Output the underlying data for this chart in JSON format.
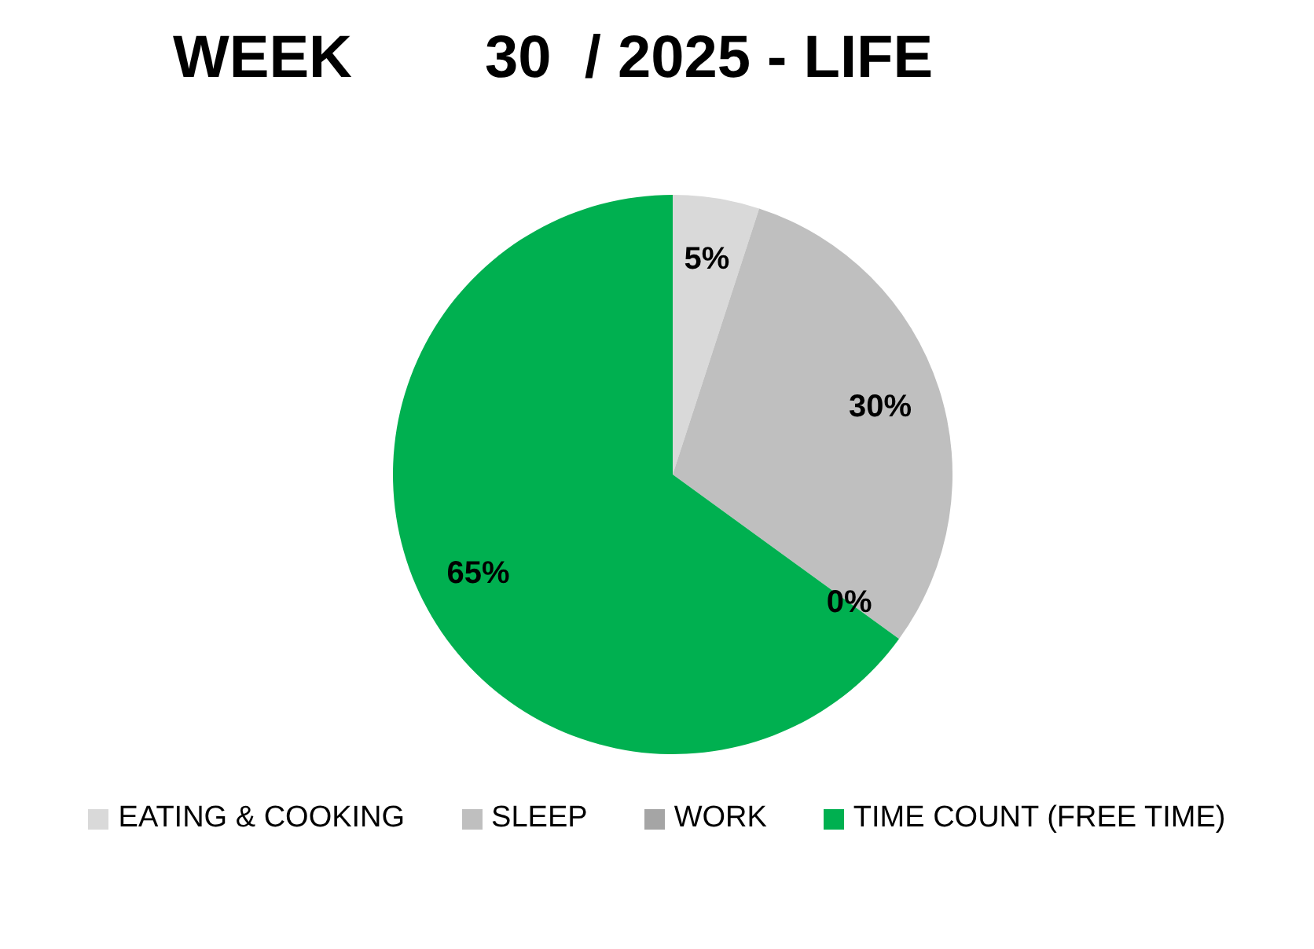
{
  "chart_data": {
    "type": "pie",
    "title": "WEEK        30  / 2025 - LIFE",
    "categories": [
      "EATING & COOKING",
      "SLEEP",
      "WORK",
      "TIME COUNT (FREE TIME)"
    ],
    "values": [
      5,
      30,
      0,
      65
    ],
    "colors": [
      "#d9d9d9",
      "#bfbfbf",
      "#a5a5a5",
      "#00b050"
    ],
    "value_labels": [
      "5%",
      "30%",
      "0%",
      "65%"
    ],
    "legend": "bottom"
  }
}
